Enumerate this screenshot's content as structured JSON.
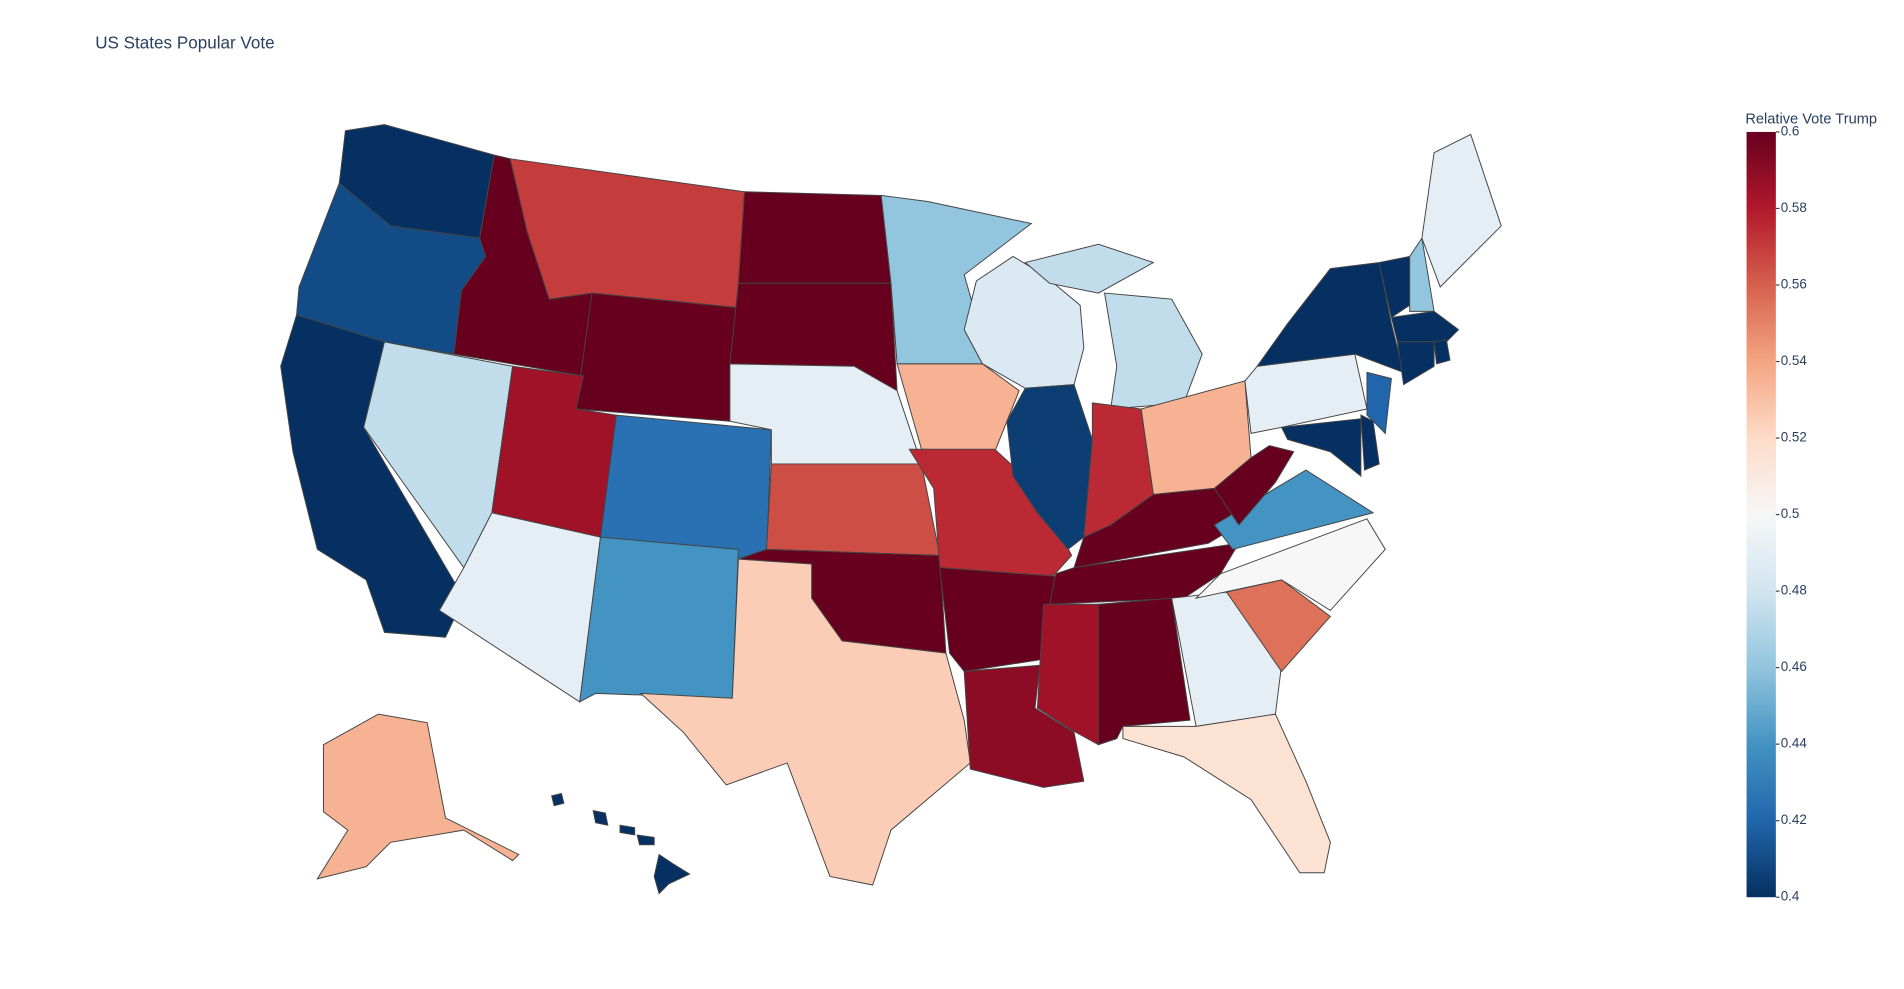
{
  "chart_data": {
    "type": "choropleth",
    "title": "US States Popular Vote",
    "colorbar_title": "Relative Vote Trump",
    "zlim": [
      0.4,
      0.6
    ],
    "zticks": [
      0.4,
      0.42,
      0.44,
      0.46,
      0.48,
      0.5,
      0.52,
      0.54,
      0.56,
      0.58,
      0.6
    ],
    "colorscale": [
      "#053061",
      "#2166ac",
      "#4393c3",
      "#92c5de",
      "#d1e5f0",
      "#f7f7f7",
      "#fddbc7",
      "#f4a582",
      "#d6604d",
      "#b2182b",
      "#67001f"
    ],
    "border_color": "#444444",
    "values": [
      0.4,
      0.41,
      0.4,
      0.475,
      0.6,
      0.57,
      0.6,
      0.585,
      0.49,
      0.425,
      0.44,
      0.6,
      0.6,
      0.49,
      0.565,
      0.6,
      0.525,
      0.46,
      0.535,
      0.575,
      0.6,
      0.59,
      0.485,
      0.405,
      0.475,
      0.575,
      0.535,
      0.6,
      0.6,
      0.585,
      0.6,
      0.49,
      0.515,
      0.555,
      0.5,
      0.44,
      0.6,
      0.49,
      0.4,
      0.42,
      0.4,
      0.4,
      0.4,
      0.46,
      0.49,
      0.4,
      0.4,
      0.4,
      0.535,
      0.4
    ]
  }
}
